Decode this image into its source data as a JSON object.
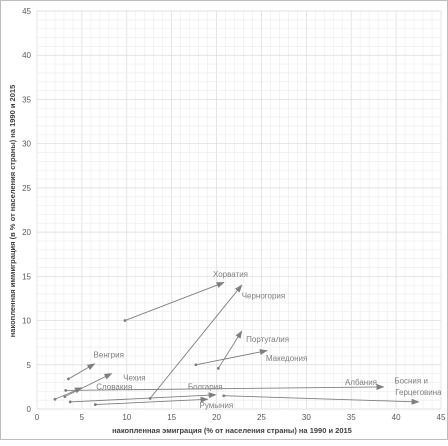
{
  "chart_data": {
    "type": "scatter",
    "title": "",
    "xlabel": "накопленная эмиграция (% от населения страны) на 1990 и 2015",
    "ylabel": "накопленная иммиграция (в % от населения страны) на 1990 и 2015",
    "xlim": [
      0,
      45
    ],
    "ylim": [
      0,
      45
    ],
    "xticks": [
      0,
      5,
      10,
      15,
      20,
      25,
      30,
      35,
      40,
      45
    ],
    "yticks": [
      0,
      5,
      10,
      15,
      20,
      25,
      30,
      35,
      40,
      45
    ],
    "grid": true,
    "legend": "none",
    "colors": {
      "arrow": "#7f7f7f",
      "label": "#7f7f7f",
      "grid": "#e3e3e3",
      "axis_text": "#595959"
    },
    "series": [
      {
        "name": "Хорватия",
        "x": [
          9.8,
          20.8
        ],
        "y": [
          10.0,
          14.3
        ]
      },
      {
        "name": "Черногория",
        "x": [
          12.6,
          22.8
        ],
        "y": [
          1.2,
          14.0
        ]
      },
      {
        "name": "Португалия",
        "x": [
          20.2,
          22.8
        ],
        "y": [
          4.6,
          8.8
        ]
      },
      {
        "name": "Македония",
        "x": [
          17.7,
          25.6
        ],
        "y": [
          5.0,
          6.6
        ]
      },
      {
        "name": "Венгрия",
        "x": [
          3.5,
          6.4
        ],
        "y": [
          3.4,
          5.1
        ]
      },
      {
        "name": "Чехия",
        "x": [
          3.1,
          8.3
        ],
        "y": [
          1.4,
          4.0
        ]
      },
      {
        "name": "Словакия",
        "x": [
          2.0,
          5.0
        ],
        "y": [
          1.1,
          2.4
        ]
      },
      {
        "name": "Болгария",
        "x": [
          3.7,
          19.9
        ],
        "y": [
          0.8,
          1.6
        ]
      },
      {
        "name": "Румыния",
        "x": [
          6.5,
          19.0
        ],
        "y": [
          0.5,
          1.1
        ]
      },
      {
        "name": "Албания",
        "x": [
          3.2,
          38.6
        ],
        "y": [
          2.1,
          2.5
        ]
      },
      {
        "name": "Босния и Герцеговина",
        "x": [
          20.8,
          42.5
        ],
        "y": [
          1.5,
          0.8
        ]
      }
    ],
    "labels": [
      {
        "text": "Хорватия",
        "x": 19.6,
        "y": 14.9
      },
      {
        "text": "Черногория",
        "x": 22.8,
        "y": 12.5
      },
      {
        "text": "Португалия",
        "x": 23.3,
        "y": 7.6
      },
      {
        "text": "Македония",
        "x": 25.5,
        "y": 5.4
      },
      {
        "text": "Венгрия",
        "x": 6.3,
        "y": 5.8
      },
      {
        "text": "Чехия",
        "x": 9.6,
        "y": 3.2
      },
      {
        "text": "Словакия",
        "x": 6.6,
        "y": 2.2
      },
      {
        "text": "Болгария",
        "x": 16.8,
        "y": 2.2
      },
      {
        "text": "Румыния",
        "x": 18.1,
        "y": 0.1
      },
      {
        "text": "Албания",
        "x": 34.3,
        "y": 2.7
      },
      {
        "text": "Босния и",
        "x": 39.8,
        "y": 2.9
      },
      {
        "text": "Герцеговина",
        "x": 39.9,
        "y": 1.6
      }
    ]
  }
}
